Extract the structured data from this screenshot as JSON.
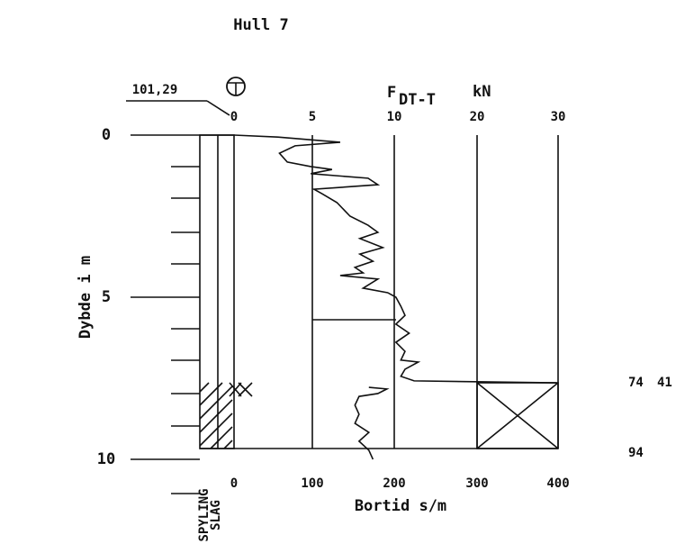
{
  "title": "Hull 7",
  "elevation": "101,29",
  "force_label": "F",
  "force_sub": "DT-T",
  "force_unit": "kN",
  "top_ticks": [
    0,
    5,
    10,
    20,
    30
  ],
  "depth_axis": {
    "label": "Dybde i m",
    "ticks": [
      0,
      5,
      10
    ]
  },
  "bottom_axis": {
    "label": "Bortid s/m",
    "ticks": [
      0,
      100,
      200,
      300,
      400
    ]
  },
  "column_labels": [
    "SPYLING",
    "SLAG"
  ],
  "right_notes": [
    "74",
    "41",
    "94"
  ],
  "force_profile": {
    "depth": [
      0,
      0.06,
      0.22,
      0.33,
      0.56,
      0.83,
      0.97,
      1.06,
      1.19,
      1.33,
      1.53,
      1.67,
      1.81,
      2.08,
      2.5,
      2.78,
      3,
      3.19,
      3.47,
      3.67,
      3.89,
      4.08,
      4.25,
      4.33,
      4.44,
      4.72,
      4.86,
      5,
      5.28,
      5.56,
      5.83,
      6.11,
      6.39,
      6.67,
      6.94,
      7.0,
      7.22,
      7.44,
      7.58,
      7.64
    ],
    "force": [
      0,
      2.8,
      6.7,
      3.9,
      2.9,
      3.4,
      4.9,
      6.2,
      4.9,
      8.4,
      9.0,
      5.1,
      5.6,
      6.5,
      7.3,
      8.4,
      9.0,
      7.9,
      9.3,
      7.9,
      8.7,
      7.6,
      8.1,
      6.7,
      9.0,
      8.1,
      9.6,
      10.2,
      10.8,
      11.3,
      10.2,
      11.8,
      10.2,
      11.3,
      10.8,
      12.9,
      11.3,
      10.8,
      12.4,
      29.8
    ]
  },
  "bortid_profile": {
    "depth": [
      7.78,
      7.83,
      7.97,
      8.06,
      8.33,
      8.61,
      8.89,
      9.17,
      9.44,
      9.72,
      10
    ],
    "bortid": [
      169,
      191,
      180,
      157,
      152,
      157,
      152,
      169,
      157,
      169,
      174
    ]
  }
}
